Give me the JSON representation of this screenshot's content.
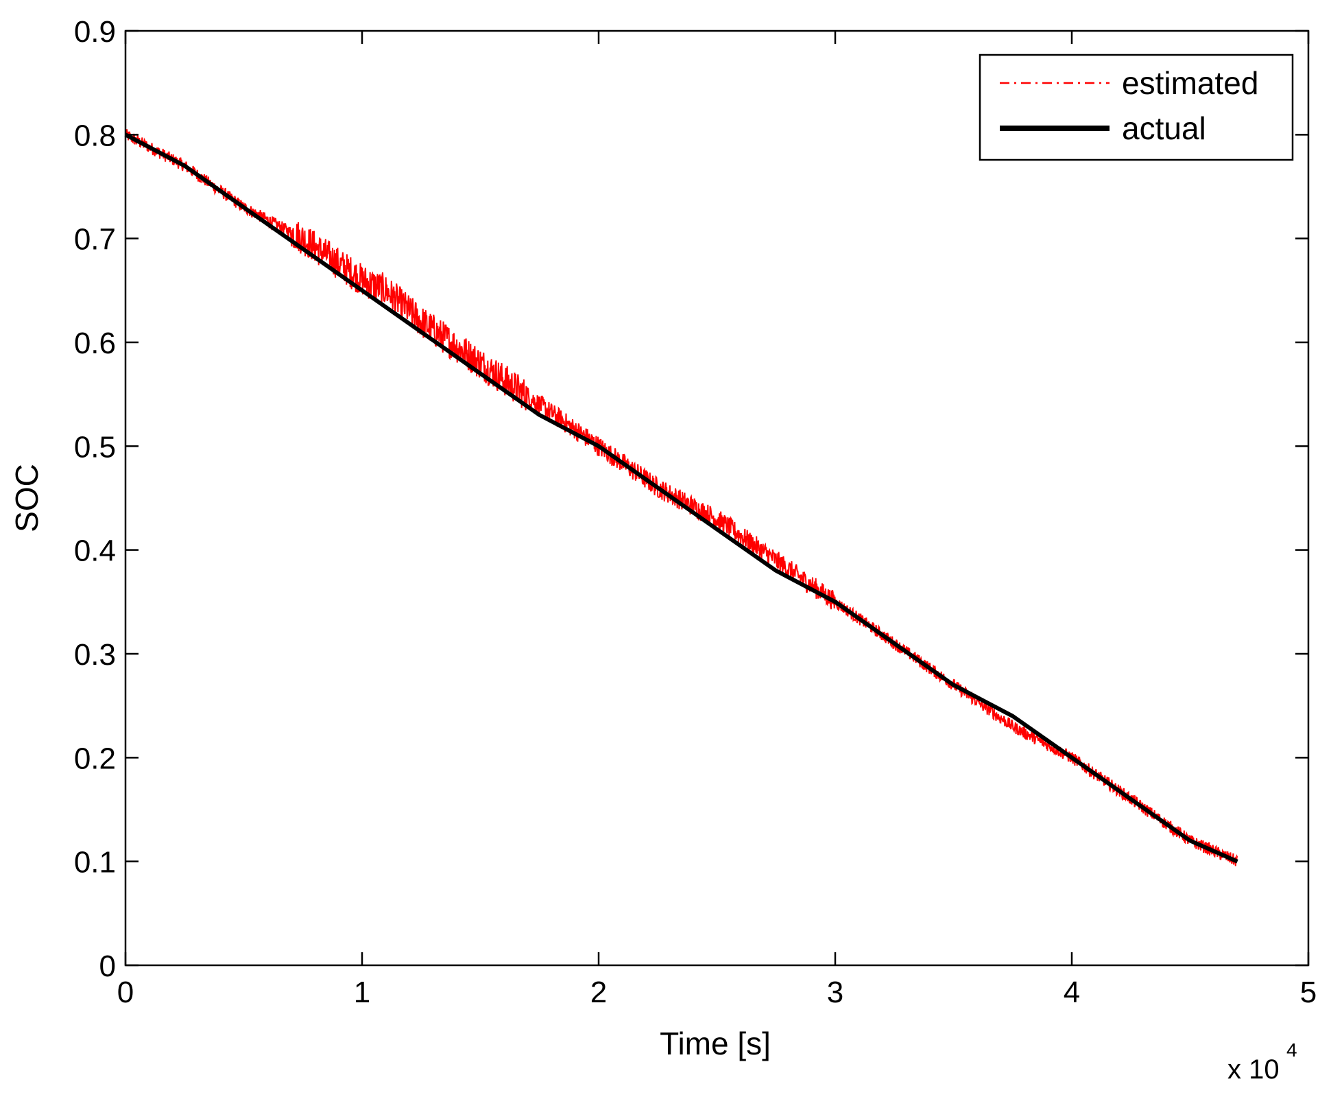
{
  "chart_data": {
    "type": "line",
    "title": "",
    "xlabel": "Time [s]",
    "ylabel": "SOC",
    "x_multiplier_label": {
      "base": "x 10",
      "exponent": "4"
    },
    "xlim": [
      0,
      5
    ],
    "ylim": [
      0,
      0.9
    ],
    "x_ticks": [
      0,
      1,
      2,
      3,
      4,
      5
    ],
    "x_tick_labels": [
      "0",
      "1",
      "2",
      "3",
      "4",
      "5"
    ],
    "y_ticks": [
      0,
      0.1,
      0.2,
      0.3,
      0.4,
      0.5,
      0.6,
      0.7,
      0.8,
      0.9
    ],
    "y_tick_labels": [
      "0",
      "0.1",
      "0.2",
      "0.3",
      "0.4",
      "0.5",
      "0.6",
      "0.7",
      "0.8",
      "0.9"
    ],
    "grid": false,
    "legend_position": "top-right",
    "series": [
      {
        "name": "estimated",
        "color": "#ff0000",
        "style": "dash-dot",
        "x": [
          0,
          0.25,
          0.5,
          0.75,
          1.0,
          1.1,
          1.25,
          1.5,
          1.75,
          2.0,
          2.25,
          2.5,
          2.75,
          3.0,
          3.25,
          3.5,
          3.75,
          4.0,
          4.25,
          4.5,
          4.7
        ],
        "values": [
          0.8,
          0.77,
          0.73,
          0.7,
          0.66,
          0.65,
          0.62,
          0.58,
          0.54,
          0.5,
          0.46,
          0.43,
          0.39,
          0.35,
          0.31,
          0.27,
          0.23,
          0.2,
          0.16,
          0.12,
          0.1
        ]
      },
      {
        "name": "actual",
        "color": "#000000",
        "style": "solid",
        "x": [
          0,
          0.25,
          0.5,
          0.75,
          1.0,
          1.25,
          1.5,
          1.75,
          2.0,
          2.25,
          2.5,
          2.75,
          3.0,
          3.25,
          3.5,
          3.75,
          4.0,
          4.25,
          4.5,
          4.7
        ],
        "values": [
          0.8,
          0.77,
          0.73,
          0.69,
          0.65,
          0.61,
          0.57,
          0.53,
          0.5,
          0.46,
          0.42,
          0.38,
          0.35,
          0.31,
          0.27,
          0.24,
          0.2,
          0.16,
          0.12,
          0.1
        ]
      }
    ]
  }
}
